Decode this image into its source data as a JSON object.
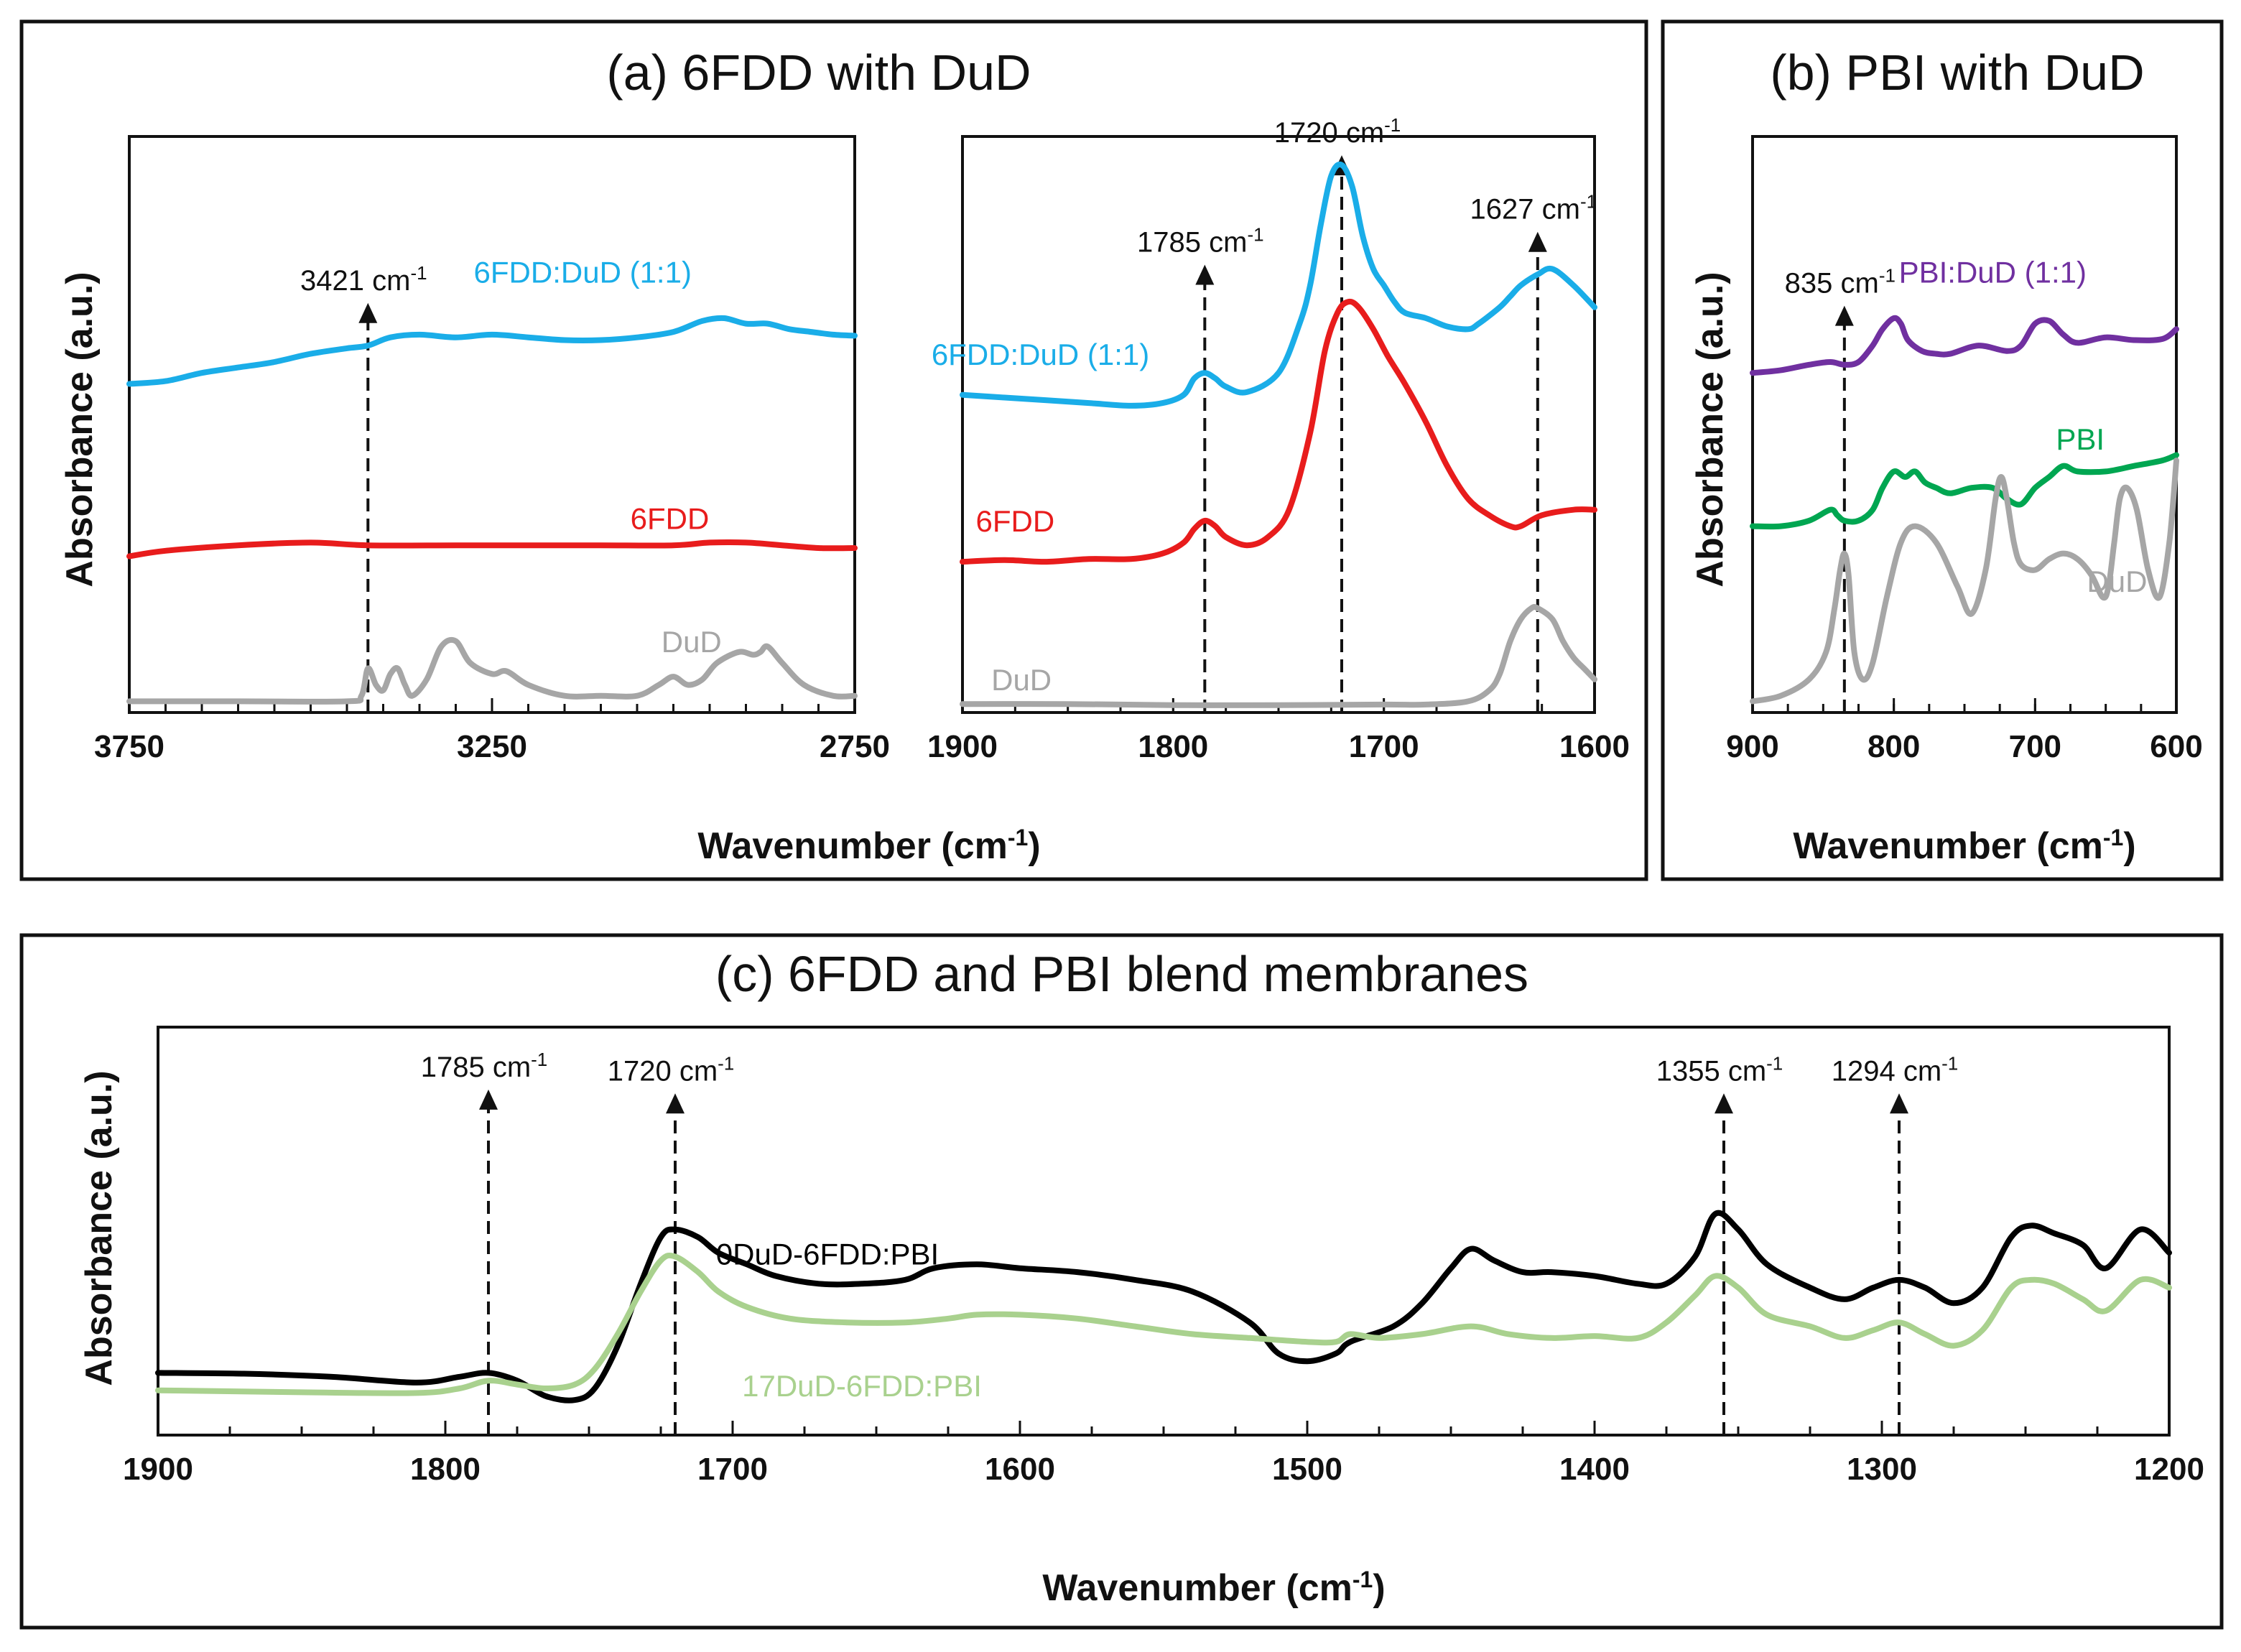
{
  "chart_data": [
    {
      "id": "a_left",
      "type": "line",
      "panel_title": "(a) 6FDD with DuD",
      "xlabel": "Wavenumber (cm-1)",
      "ylabel": "Absorbance (a.u.)",
      "xlim": [
        3750,
        2750
      ],
      "ylim": [
        0,
        1
      ],
      "xticks": [
        3750,
        3250,
        2750
      ],
      "series": [
        {
          "name": "6FDD:DuD (1:1)",
          "color": "#1AADE8",
          "label_at": [
            3125,
            0.775
          ],
          "x": [
            3750,
            3700,
            3650,
            3600,
            3550,
            3500,
            3450,
            3421,
            3390,
            3350,
            3300,
            3250,
            3200,
            3150,
            3100,
            3050,
            3000,
            2960,
            2930,
            2900,
            2870,
            2840,
            2810,
            2780,
            2750
          ],
          "y": [
            0.59,
            0.595,
            0.61,
            0.62,
            0.63,
            0.645,
            0.655,
            0.66,
            0.675,
            0.68,
            0.675,
            0.68,
            0.675,
            0.67,
            0.67,
            0.675,
            0.685,
            0.705,
            0.71,
            0.7,
            0.7,
            0.69,
            0.685,
            0.68,
            0.678
          ]
        },
        {
          "name": "6FDD",
          "color": "#E81C1C",
          "label_at": [
            3005,
            0.325
          ],
          "x": [
            3750,
            3700,
            3600,
            3500,
            3421,
            3300,
            3200,
            3100,
            3000,
            2950,
            2900,
            2850,
            2800,
            2750
          ],
          "y": [
            0.275,
            0.285,
            0.295,
            0.3,
            0.295,
            0.295,
            0.295,
            0.295,
            0.295,
            0.3,
            0.3,
            0.295,
            0.29,
            0.29
          ],
          "label": "6FDD"
        },
        {
          "name": "DuD",
          "color": "#A6A6A6",
          "label_at": [
            2975,
            0.1
          ],
          "x": [
            3750,
            3600,
            3450,
            3430,
            3421,
            3410,
            3400,
            3390,
            3380,
            3370,
            3360,
            3340,
            3320,
            3300,
            3280,
            3250,
            3230,
            3200,
            3150,
            3100,
            3050,
            3020,
            3000,
            2980,
            2960,
            2940,
            2910,
            2890,
            2880,
            2870,
            2850,
            2820,
            2780,
            2750
          ],
          "y": [
            0.01,
            0.01,
            0.01,
            0.02,
            0.07,
            0.04,
            0.03,
            0.06,
            0.07,
            0.04,
            0.02,
            0.05,
            0.11,
            0.12,
            0.08,
            0.06,
            0.065,
            0.04,
            0.02,
            0.02,
            0.02,
            0.04,
            0.055,
            0.04,
            0.05,
            0.08,
            0.1,
            0.095,
            0.1,
            0.11,
            0.08,
            0.04,
            0.02,
            0.02
          ]
        }
      ],
      "vlines": [
        {
          "x": 3421,
          "y_top": 0.73,
          "label": "3421 cm",
          "sup": "-1"
        }
      ]
    },
    {
      "id": "a_right",
      "type": "line",
      "xlabel": "Wavenumber (cm-1)",
      "xlim": [
        1900,
        1600
      ],
      "ylim": [
        0,
        1
      ],
      "xticks": [
        1900,
        1800,
        1700,
        1600
      ],
      "series": [
        {
          "name": "6FDD:DuD (1:1)",
          "color": "#1AADE8",
          "label_at": [
            1863,
            0.625
          ],
          "x": [
            1900,
            1880,
            1860,
            1840,
            1820,
            1805,
            1795,
            1790,
            1785,
            1780,
            1775,
            1765,
            1750,
            1740,
            1735,
            1730,
            1725,
            1720,
            1715,
            1710,
            1705,
            1700,
            1695,
            1690,
            1680,
            1670,
            1660,
            1655,
            1645,
            1640,
            1635,
            1627,
            1620,
            1610,
            1600
          ],
          "y": [
            0.57,
            0.565,
            0.56,
            0.555,
            0.55,
            0.555,
            0.57,
            0.6,
            0.61,
            0.6,
            0.585,
            0.575,
            0.61,
            0.7,
            0.77,
            0.88,
            0.97,
            0.99,
            0.95,
            0.86,
            0.8,
            0.77,
            0.74,
            0.72,
            0.71,
            0.695,
            0.69,
            0.7,
            0.73,
            0.75,
            0.77,
            0.79,
            0.8,
            0.77,
            0.73
          ]
        },
        {
          "name": "6FDD",
          "color": "#E81C1C",
          "label_at": [
            1875,
            0.32
          ],
          "x": [
            1900,
            1880,
            1860,
            1840,
            1820,
            1805,
            1795,
            1790,
            1785,
            1780,
            1775,
            1765,
            1755,
            1745,
            1735,
            1728,
            1722,
            1717,
            1712,
            1705,
            1698,
            1690,
            1680,
            1670,
            1660,
            1650,
            1640,
            1635,
            1625,
            1610,
            1600
          ],
          "y": [
            0.265,
            0.268,
            0.265,
            0.27,
            0.27,
            0.28,
            0.3,
            0.325,
            0.34,
            0.33,
            0.31,
            0.295,
            0.31,
            0.36,
            0.5,
            0.65,
            0.72,
            0.74,
            0.73,
            0.69,
            0.64,
            0.59,
            0.52,
            0.44,
            0.38,
            0.35,
            0.33,
            0.33,
            0.35,
            0.36,
            0.36
          ]
        },
        {
          "name": "DuD",
          "color": "#A6A6A6",
          "label_at": [
            1872,
            0.03
          ],
          "x": [
            1900,
            1850,
            1800,
            1750,
            1700,
            1680,
            1660,
            1650,
            1645,
            1640,
            1635,
            1630,
            1627,
            1620,
            1615,
            1610,
            1605,
            1600
          ],
          "y": [
            0.005,
            0.005,
            0.003,
            0.003,
            0.004,
            0.004,
            0.01,
            0.03,
            0.06,
            0.12,
            0.16,
            0.18,
            0.18,
            0.16,
            0.12,
            0.09,
            0.07,
            0.05
          ]
        }
      ],
      "vlines": [
        {
          "x": 1785,
          "y_top": 0.8,
          "label": "1785 cm",
          "sup": "-1"
        },
        {
          "x": 1720,
          "y_top": 1.0,
          "label": "1720 cm",
          "sup": "-1"
        },
        {
          "x": 1627,
          "y_top": 0.86,
          "label": "1627 cm",
          "sup": "-1"
        }
      ]
    },
    {
      "id": "b",
      "type": "line",
      "panel_title": "(b) PBI with DuD",
      "xlabel": "Wavenumber (cm-1)",
      "ylabel": "Absorbance (a.u.)",
      "xlim": [
        900,
        600
      ],
      "ylim": [
        0,
        1
      ],
      "xticks": [
        900,
        800,
        700,
        600
      ],
      "series": [
        {
          "name": "PBI:DuD (1:1)",
          "color": "#7030A0",
          "label_at": [
            730,
            0.775
          ],
          "x": [
            900,
            880,
            860,
            845,
            835,
            825,
            815,
            808,
            800,
            795,
            790,
            780,
            770,
            760,
            740,
            720,
            710,
            700,
            690,
            680,
            670,
            650,
            630,
            610,
            600
          ],
          "y": [
            0.61,
            0.615,
            0.625,
            0.63,
            0.625,
            0.63,
            0.66,
            0.69,
            0.71,
            0.7,
            0.67,
            0.65,
            0.645,
            0.645,
            0.66,
            0.65,
            0.66,
            0.7,
            0.705,
            0.68,
            0.665,
            0.675,
            0.67,
            0.672,
            0.69
          ]
        },
        {
          "name": "PBI",
          "color": "#00A651",
          "label_at": [
            668,
            0.47
          ],
          "x": [
            900,
            880,
            860,
            845,
            840,
            835,
            825,
            815,
            808,
            800,
            792,
            785,
            778,
            770,
            760,
            745,
            730,
            720,
            710,
            700,
            690,
            680,
            670,
            650,
            630,
            610,
            600
          ],
          "y": [
            0.33,
            0.33,
            0.34,
            0.36,
            0.35,
            0.34,
            0.34,
            0.36,
            0.4,
            0.43,
            0.42,
            0.43,
            0.41,
            0.4,
            0.39,
            0.4,
            0.4,
            0.38,
            0.37,
            0.4,
            0.42,
            0.44,
            0.43,
            0.43,
            0.44,
            0.45,
            0.46
          ]
        },
        {
          "name": "DuD",
          "color": "#A6A6A6",
          "label_at": [
            642,
            0.21
          ],
          "x": [
            900,
            880,
            860,
            848,
            842,
            838,
            835,
            832,
            828,
            822,
            815,
            805,
            795,
            785,
            770,
            755,
            745,
            735,
            728,
            724,
            720,
            715,
            710,
            700,
            690,
            680,
            670,
            660,
            652,
            648,
            644,
            640,
            635,
            628,
            620,
            612,
            605,
            600
          ],
          "y": [
            0.01,
            0.02,
            0.05,
            0.1,
            0.18,
            0.25,
            0.28,
            0.24,
            0.1,
            0.05,
            0.08,
            0.2,
            0.3,
            0.33,
            0.3,
            0.22,
            0.17,
            0.25,
            0.38,
            0.42,
            0.38,
            0.3,
            0.26,
            0.25,
            0.27,
            0.28,
            0.27,
            0.24,
            0.2,
            0.22,
            0.3,
            0.38,
            0.4,
            0.36,
            0.25,
            0.2,
            0.3,
            0.45
          ]
        }
      ],
      "vlines": [
        {
          "x": 835,
          "y_top": 0.725,
          "label": "835 cm",
          "sup": "-1"
        }
      ]
    },
    {
      "id": "c",
      "type": "line",
      "panel_title": "(c) 6FDD and PBI blend membranes",
      "xlabel": "Wavenumber (cm-1)",
      "ylabel": "Absorbance (a.u.)",
      "xlim": [
        1900,
        1200
      ],
      "ylim": [
        0,
        1
      ],
      "xticks": [
        1900,
        1800,
        1700,
        1600,
        1500,
        1400,
        1300,
        1200
      ],
      "series": [
        {
          "name": "0DuD-6FDD:PBI",
          "color": "#000000",
          "label_at": [
            1667,
            0.43
          ],
          "x": [
            1900,
            1870,
            1840,
            1810,
            1795,
            1785,
            1775,
            1765,
            1755,
            1748,
            1740,
            1732,
            1725,
            1720,
            1712,
            1705,
            1695,
            1685,
            1670,
            1655,
            1640,
            1630,
            1615,
            1600,
            1580,
            1560,
            1540,
            1520,
            1510,
            1500,
            1490,
            1485,
            1470,
            1460,
            1450,
            1443,
            1435,
            1425,
            1415,
            1400,
            1385,
            1375,
            1365,
            1358,
            1350,
            1340,
            1325,
            1313,
            1303,
            1294,
            1285,
            1275,
            1265,
            1255,
            1248,
            1240,
            1230,
            1222,
            1210,
            1200
          ],
          "y": [
            0.15,
            0.148,
            0.14,
            0.125,
            0.14,
            0.15,
            0.13,
            0.09,
            0.08,
            0.11,
            0.22,
            0.38,
            0.5,
            0.52,
            0.5,
            0.46,
            0.43,
            0.4,
            0.38,
            0.38,
            0.39,
            0.42,
            0.43,
            0.42,
            0.41,
            0.39,
            0.36,
            0.28,
            0.2,
            0.18,
            0.2,
            0.23,
            0.27,
            0.33,
            0.42,
            0.47,
            0.44,
            0.41,
            0.41,
            0.4,
            0.38,
            0.38,
            0.45,
            0.56,
            0.52,
            0.43,
            0.37,
            0.34,
            0.37,
            0.39,
            0.37,
            0.33,
            0.37,
            0.5,
            0.53,
            0.51,
            0.48,
            0.42,
            0.52,
            0.46
          ]
        },
        {
          "name": "17DuD-6FDD:PBI",
          "color": "#A9D18E",
          "label_at": [
            1655,
            0.09
          ],
          "x": [
            1900,
            1850,
            1810,
            1795,
            1785,
            1775,
            1765,
            1755,
            1748,
            1740,
            1732,
            1725,
            1720,
            1712,
            1705,
            1695,
            1680,
            1660,
            1640,
            1625,
            1615,
            1600,
            1580,
            1560,
            1540,
            1520,
            1500,
            1490,
            1485,
            1475,
            1460,
            1443,
            1430,
            1415,
            1400,
            1385,
            1375,
            1365,
            1358,
            1350,
            1340,
            1325,
            1313,
            1303,
            1294,
            1285,
            1275,
            1265,
            1255,
            1248,
            1240,
            1230,
            1222,
            1210,
            1200
          ],
          "y": [
            0.105,
            0.1,
            0.098,
            0.11,
            0.13,
            0.12,
            0.11,
            0.12,
            0.16,
            0.25,
            0.36,
            0.44,
            0.45,
            0.41,
            0.36,
            0.32,
            0.29,
            0.28,
            0.28,
            0.29,
            0.3,
            0.3,
            0.29,
            0.27,
            0.25,
            0.24,
            0.23,
            0.23,
            0.25,
            0.24,
            0.25,
            0.27,
            0.25,
            0.24,
            0.245,
            0.24,
            0.28,
            0.35,
            0.4,
            0.37,
            0.3,
            0.27,
            0.24,
            0.26,
            0.28,
            0.25,
            0.22,
            0.26,
            0.37,
            0.39,
            0.38,
            0.34,
            0.31,
            0.39,
            0.37
          ]
        }
      ],
      "vlines": [
        {
          "x": 1785,
          "y_top": 0.87,
          "label": "1785 cm",
          "sup": "-1"
        },
        {
          "x": 1720,
          "y_top": 0.86,
          "label": "1720 cm",
          "sup": "-1"
        },
        {
          "x": 1355,
          "y_top": 0.86,
          "label": "1355 cm",
          "sup": "-1"
        },
        {
          "x": 1294,
          "y_top": 0.86,
          "label": "1294 cm",
          "sup": "-1"
        }
      ]
    }
  ]
}
